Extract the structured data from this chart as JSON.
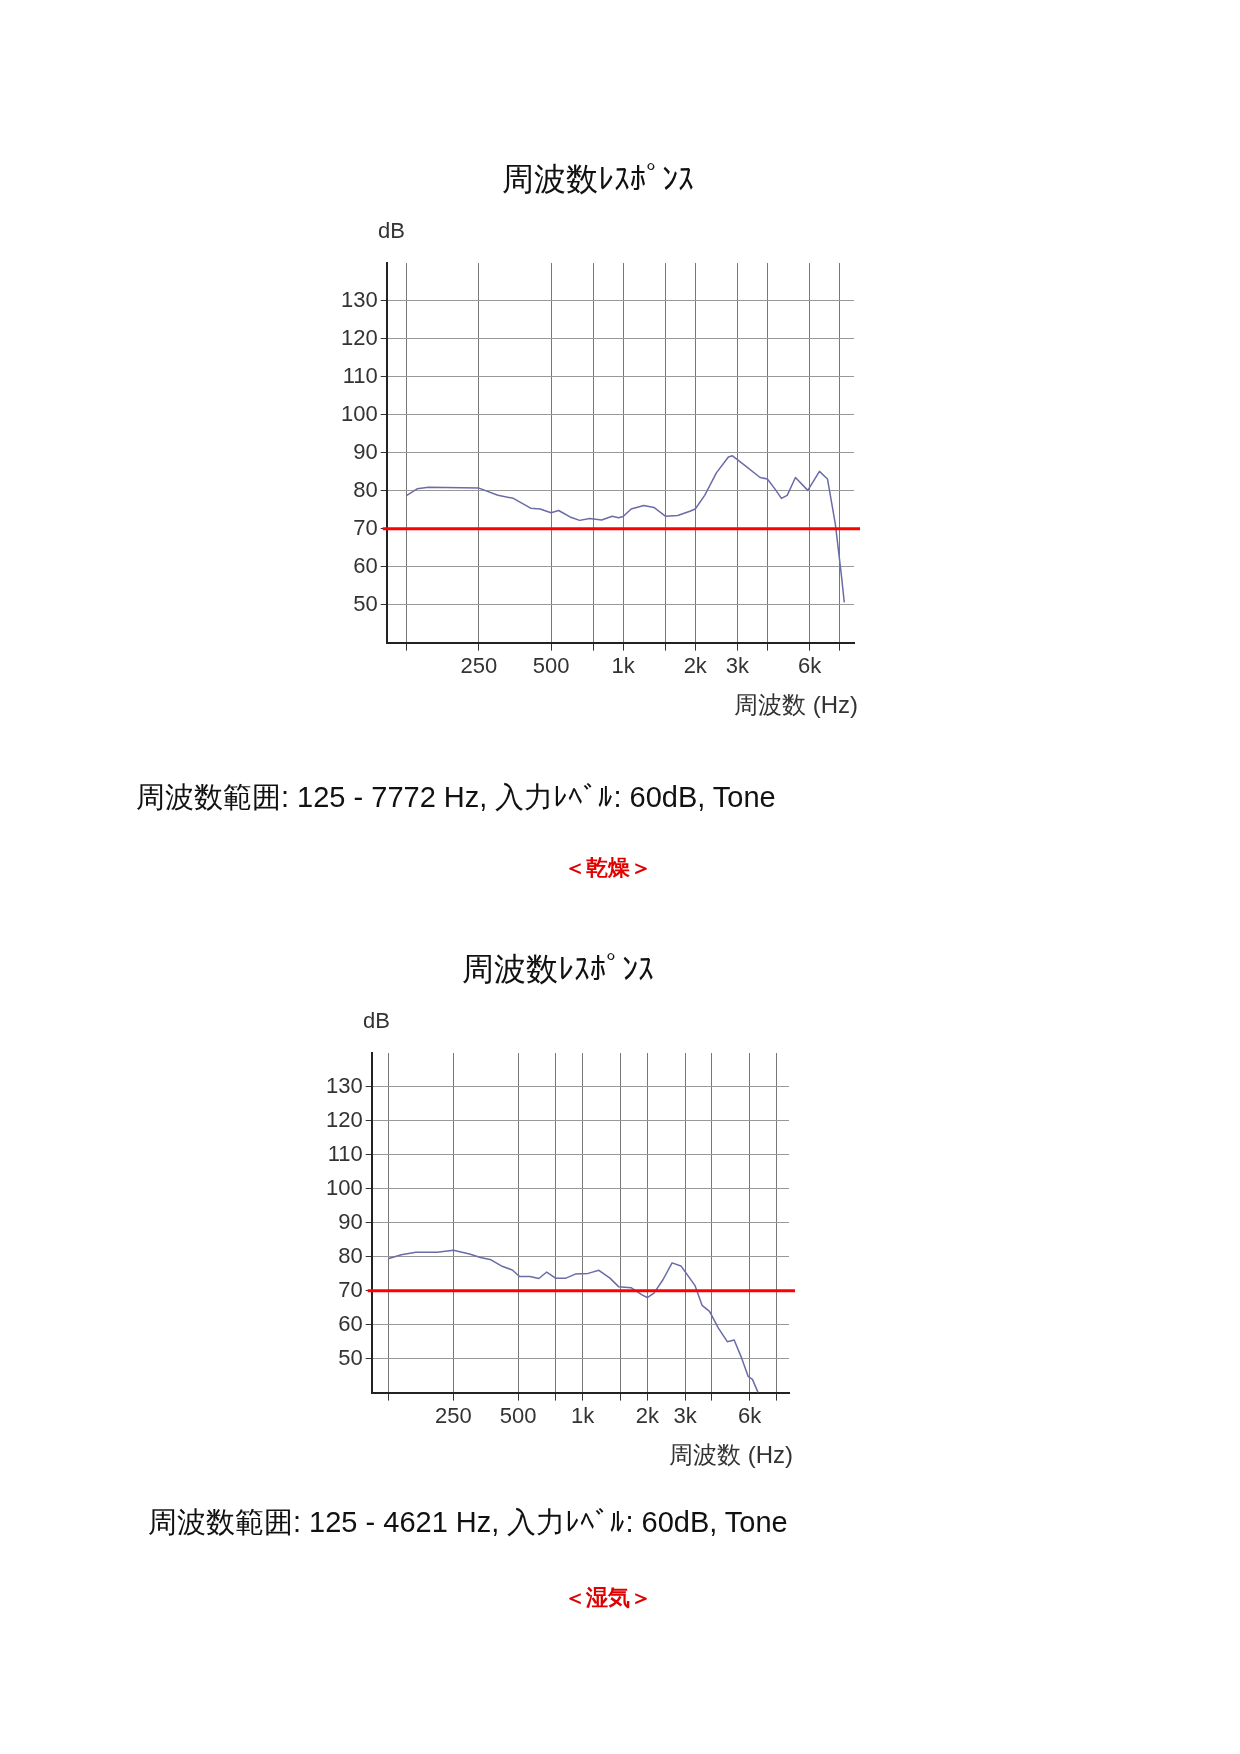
{
  "chart_data": [
    {
      "type": "line",
      "title": "周波数ﾚｽﾎﾟﾝｽ",
      "ylabel": "dB",
      "xlabel": "周波数 (Hz)",
      "log": "x",
      "grid": true,
      "legend": false,
      "xlim": [
        103,
        9200
      ],
      "xticks": [
        {
          "value": 125,
          "label": null
        },
        {
          "value": 250,
          "label": "250"
        },
        {
          "value": 500,
          "label": "500"
        },
        {
          "value": 750,
          "label": null
        },
        {
          "value": 1000,
          "label": "1k"
        },
        {
          "value": 1500,
          "label": null
        },
        {
          "value": 2000,
          "label": "2k"
        },
        {
          "value": 3000,
          "label": "3k"
        },
        {
          "value": 4000,
          "label": null
        },
        {
          "value": 6000,
          "label": "6k"
        },
        {
          "value": 8000,
          "label": null
        }
      ],
      "ylim": [
        40,
        140
      ],
      "yticks": [
        50,
        60,
        70,
        80,
        90,
        100,
        110,
        120,
        130
      ],
      "series": [
        {
          "color": "#6b6ba8",
          "x": [
            125,
            138,
            154,
            250,
            300,
            348,
            411,
            450,
            500,
            538,
            600,
            658,
            725,
            813,
            900,
            958,
            1000,
            1080,
            1220,
            1345,
            1500,
            1690,
            1900,
            2000,
            2190,
            2450,
            2750,
            2860,
            3200,
            3730,
            4000,
            4300,
            4580,
            4840,
            5240,
            5900,
            6600,
            7130,
            7690,
            8150,
            8380
          ],
          "values": [
            78.8,
            80.5,
            80.9,
            80.7,
            78.8,
            78,
            75.4,
            75.2,
            74.2,
            74.8,
            73.1,
            72.2,
            72.7,
            72.3,
            73.3,
            72.9,
            73.2,
            75.2,
            76.1,
            75.6,
            73.3,
            73.5,
            74.6,
            75.2,
            78.8,
            84.7,
            88.9,
            89.2,
            86.8,
            83.5,
            83.1,
            80.5,
            78,
            78.8,
            83.5,
            80.1,
            85.1,
            83.1,
            71.2,
            57.7,
            50.6
          ]
        }
      ],
      "ref_lines": [
        {
          "axis": "y",
          "value": 70,
          "color": "#ff0000"
        }
      ],
      "annotations": [
        "周波数範囲: 125 - 7772 Hz, 入力ﾚﾍﾞﾙ: 60dB, Tone",
        "＜乾燥＞"
      ]
    },
    {
      "type": "line",
      "title": "周波数ﾚｽﾎﾟﾝｽ",
      "ylabel": "dB",
      "xlabel": "周波数 (Hz)",
      "log": "x",
      "grid": true,
      "legend": false,
      "xlim": [
        104,
        9150
      ],
      "xticks": [
        {
          "value": 125,
          "label": null
        },
        {
          "value": 250,
          "label": "250"
        },
        {
          "value": 500,
          "label": "500"
        },
        {
          "value": 750,
          "label": null
        },
        {
          "value": 1000,
          "label": "1k"
        },
        {
          "value": 1500,
          "label": null
        },
        {
          "value": 2000,
          "label": "2k"
        },
        {
          "value": 3000,
          "label": "3k"
        },
        {
          "value": 4000,
          "label": null
        },
        {
          "value": 6000,
          "label": "6k"
        },
        {
          "value": 8000,
          "label": null
        }
      ],
      "ylim": [
        40,
        140
      ],
      "yticks": [
        50,
        60,
        70,
        80,
        90,
        100,
        110,
        120,
        130
      ],
      "series": [
        {
          "color": "#6b6ba8",
          "x": [
            125,
            143,
            167,
            210,
            250,
            297,
            334,
            374,
            418,
            470,
            508,
            568,
            625,
            680,
            747,
            836,
            924,
            1060,
            1190,
            1340,
            1470,
            1680,
            1890,
            2000,
            2150,
            2370,
            2610,
            2870,
            3340,
            3600,
            3900,
            4290,
            4720,
            5080,
            5470,
            5900,
            6180,
            6570
          ],
          "values": [
            79.5,
            80.6,
            81.3,
            81.3,
            81.9,
            80.8,
            79.8,
            79.1,
            77.3,
            76.1,
            74.2,
            74.2,
            73.6,
            75.5,
            73.7,
            73.7,
            74.9,
            75.1,
            76,
            73.7,
            71.2,
            70.9,
            68.8,
            68,
            69.3,
            73.3,
            78.2,
            77.3,
            71.5,
            65.7,
            63.9,
            59,
            55,
            55.5,
            50.6,
            44.8,
            43.9,
            40
          ]
        }
      ],
      "ref_lines": [
        {
          "axis": "y",
          "value": 70,
          "color": "#ff0000"
        }
      ],
      "annotations": [
        "周波数範囲: 125 - 4621 Hz, 入力ﾚﾍﾞﾙ: 60dB, Tone",
        "＜湿気＞"
      ]
    }
  ]
}
